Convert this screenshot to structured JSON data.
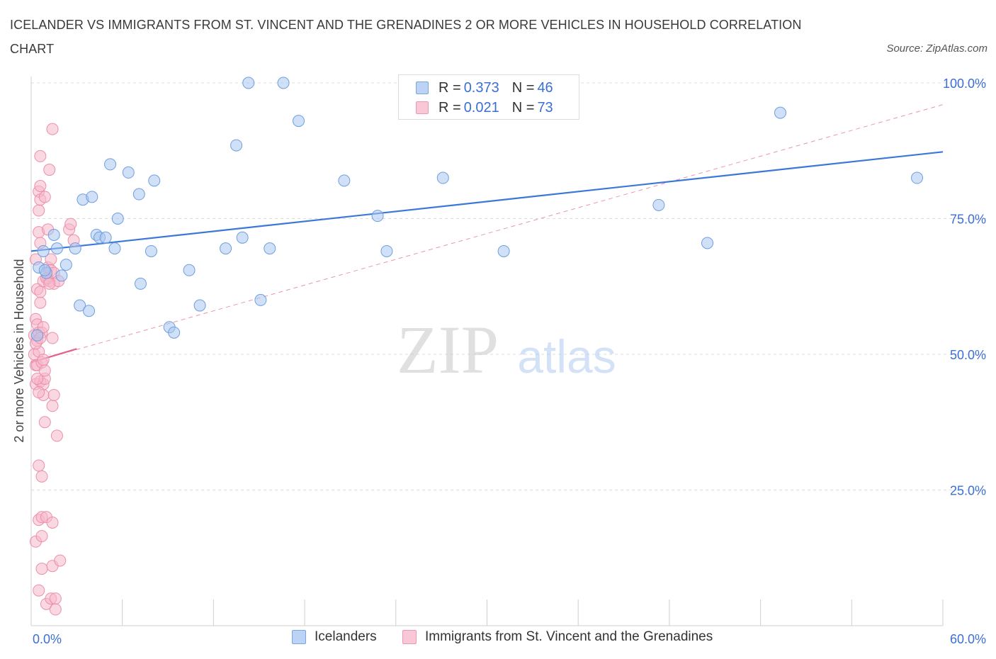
{
  "title": "ICELANDER VS IMMIGRANTS FROM ST. VINCENT AND THE GRENADINES 2 OR MORE VEHICLES IN HOUSEHOLD CORRELATION CHART",
  "source": "Source: ZipAtlas.com",
  "watermark": {
    "zip": "ZIP",
    "atlas": "atlas"
  },
  "legend_stats": [
    {
      "r_label": "R = ",
      "r_value": "0.373",
      "n_label": "N = ",
      "n_value": "46"
    },
    {
      "r_label": "R = ",
      "r_value": "0.021",
      "n_label": "N = ",
      "n_value": "73"
    }
  ],
  "colors": {
    "blue_fill": "#a9c6f0",
    "blue_stroke": "#6f9ee0",
    "blue_line": "#3b78d8",
    "pink_fill": "#f6b8cb",
    "pink_stroke": "#ec8fab",
    "pink_line": "#e2628e",
    "tick_label": "#3b6fd4",
    "grid": "#dddddd"
  },
  "chart_data": {
    "type": "scatter",
    "title": "ICELANDER VS IMMIGRANTS FROM ST. VINCENT AND THE GRENADINES 2 OR MORE VEHICLES IN HOUSEHOLD CORRELATION CHART",
    "xlabel": "",
    "ylabel": "2 or more Vehicles in Household",
    "xlim": [
      0,
      60
    ],
    "ylim": [
      0,
      100
    ],
    "x_tick_labels": [
      "0.0%",
      "60.0%"
    ],
    "y_ticks": [
      25,
      50,
      75,
      100
    ],
    "y_tick_labels": [
      "25.0%",
      "50.0%",
      "75.0%",
      "100.0%"
    ],
    "grid": true,
    "legend_position": "bottom",
    "series": [
      {
        "name": "Icelanders",
        "r": 0.373,
        "n": 46,
        "trend": {
          "x": [
            0,
            60
          ],
          "y": [
            69.0,
            87.3
          ],
          "style": "solid"
        },
        "points": [
          [
            0.5,
            66
          ],
          [
            0.8,
            69
          ],
          [
            1.0,
            65
          ],
          [
            1.5,
            72
          ],
          [
            1.7,
            69.5
          ],
          [
            2.0,
            64.5
          ],
          [
            2.3,
            66.5
          ],
          [
            2.9,
            69.5
          ],
          [
            3.2,
            59
          ],
          [
            3.4,
            78.5
          ],
          [
            3.8,
            58
          ],
          [
            4.0,
            79
          ],
          [
            4.3,
            72
          ],
          [
            4.5,
            71.5
          ],
          [
            4.9,
            71.5
          ],
          [
            5.2,
            85
          ],
          [
            5.5,
            69.5
          ],
          [
            5.7,
            75
          ],
          [
            6.4,
            83.5
          ],
          [
            7.1,
            79.5
          ],
          [
            7.2,
            63
          ],
          [
            7.9,
            69
          ],
          [
            8.1,
            82
          ],
          [
            9.1,
            55
          ],
          [
            9.4,
            54
          ],
          [
            10.4,
            65.5
          ],
          [
            11.1,
            59
          ],
          [
            12.8,
            69.5
          ],
          [
            13.5,
            88.5
          ],
          [
            13.9,
            71.5
          ],
          [
            14.3,
            100
          ],
          [
            15.1,
            60
          ],
          [
            15.7,
            69.5
          ],
          [
            16.6,
            100
          ],
          [
            17.6,
            93
          ],
          [
            20.6,
            82
          ],
          [
            22.8,
            75.5
          ],
          [
            23.4,
            69
          ],
          [
            27.1,
            82.5
          ],
          [
            31.1,
            69
          ],
          [
            41.3,
            77.5
          ],
          [
            44.5,
            70.5
          ],
          [
            49.3,
            94.5
          ],
          [
            58.3,
            82.5
          ],
          [
            0.4,
            53.5
          ],
          [
            0.9,
            65.5
          ]
        ]
      },
      {
        "name": "Immigrants from St. Vincent and the Grenadines",
        "r": 0.021,
        "n": 73,
        "trend": {
          "x": [
            0,
            3.0
          ],
          "y": [
            48.5,
            51.0
          ],
          "extended_x": [
            0,
            60
          ],
          "extended_y": [
            48.5,
            96.0
          ],
          "style": "solid+dashed"
        },
        "points": [
          [
            0.2,
            53.5
          ],
          [
            0.2,
            50
          ],
          [
            0.3,
            56.5
          ],
          [
            0.3,
            44.5
          ],
          [
            0.3,
            15.5
          ],
          [
            0.3,
            48
          ],
          [
            0.4,
            62
          ],
          [
            0.4,
            52.5
          ],
          [
            0.4,
            55.5
          ],
          [
            0.4,
            48
          ],
          [
            0.5,
            54
          ],
          [
            0.5,
            50.5
          ],
          [
            0.5,
            19.5
          ],
          [
            0.5,
            29.5
          ],
          [
            0.5,
            6.5
          ],
          [
            0.5,
            76.5
          ],
          [
            0.5,
            80
          ],
          [
            0.5,
            72.5
          ],
          [
            0.6,
            86.5
          ],
          [
            0.6,
            70.5
          ],
          [
            0.6,
            59.5
          ],
          [
            0.6,
            61.5
          ],
          [
            0.6,
            45
          ],
          [
            0.6,
            78.5
          ],
          [
            0.6,
            81
          ],
          [
            0.7,
            27.5
          ],
          [
            0.7,
            48.5
          ],
          [
            0.7,
            20
          ],
          [
            0.7,
            16.5
          ],
          [
            0.7,
            10.5
          ],
          [
            0.8,
            63.5
          ],
          [
            0.8,
            49
          ],
          [
            0.8,
            44.5
          ],
          [
            0.8,
            42.5
          ],
          [
            0.9,
            37.5
          ],
          [
            0.9,
            79
          ],
          [
            0.9,
            45.5
          ],
          [
            1.0,
            4
          ],
          [
            1.0,
            20
          ],
          [
            1.1,
            73
          ],
          [
            1.1,
            66
          ],
          [
            1.1,
            64
          ],
          [
            1.2,
            84
          ],
          [
            1.2,
            63.5
          ],
          [
            1.3,
            67.5
          ],
          [
            1.3,
            65.5
          ],
          [
            1.3,
            5
          ],
          [
            1.4,
            91.5
          ],
          [
            1.4,
            53
          ],
          [
            1.4,
            40.5
          ],
          [
            1.4,
            11
          ],
          [
            1.4,
            19
          ],
          [
            1.5,
            65
          ],
          [
            1.5,
            63
          ],
          [
            1.5,
            42.5
          ],
          [
            1.6,
            5
          ],
          [
            1.6,
            3
          ],
          [
            1.7,
            35
          ],
          [
            1.8,
            63.5
          ],
          [
            1.9,
            12
          ],
          [
            2.5,
            73
          ],
          [
            2.6,
            74
          ],
          [
            2.8,
            71
          ],
          [
            0.3,
            67.5
          ],
          [
            0.4,
            45.5
          ],
          [
            0.5,
            43
          ],
          [
            0.7,
            54
          ],
          [
            0.8,
            55
          ],
          [
            0.9,
            47
          ],
          [
            1.0,
            64
          ],
          [
            1.2,
            63
          ],
          [
            0.3,
            52
          ],
          [
            0.6,
            53
          ]
        ]
      }
    ]
  },
  "bottom_legend": [
    "Icelanders",
    "Immigrants from St. Vincent and the Grenadines"
  ]
}
